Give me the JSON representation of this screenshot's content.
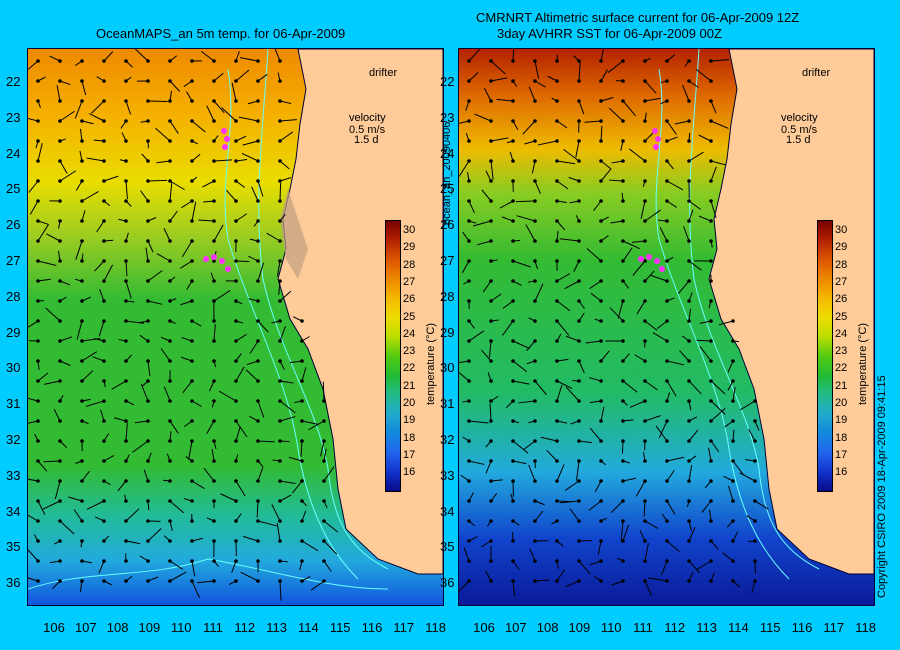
{
  "left_panel": {
    "title": "OceanMAPS_an 5m temp. for 06-Apr-2009"
  },
  "right_panel": {
    "title_line1": "CMRNRT Altimetric surface current for 06-Apr-2009 12Z",
    "title_line2": "3day AVHRR SST for 06-Apr-2009 00Z"
  },
  "latitude_labels": [
    "22",
    "23",
    "24",
    "25",
    "26",
    "27",
    "28",
    "29",
    "30",
    "31",
    "32",
    "33",
    "34",
    "35",
    "36"
  ],
  "longitude_labels": [
    "106",
    "107",
    "108",
    "109",
    "110",
    "111",
    "112",
    "113",
    "114",
    "115",
    "116",
    "117",
    "118"
  ],
  "legend": {
    "drifter_label": "drifter",
    "velocity_label": "velocity",
    "velocity_scale": "0.5 m/s",
    "velocity_scale_alt": "1.5 d"
  },
  "colorbar": {
    "ticks": [
      "30",
      "29",
      "28",
      "27",
      "26",
      "25",
      "24",
      "23",
      "22",
      "21",
      "20",
      "19",
      "18",
      "17",
      "16"
    ],
    "label": "temperature (°C)",
    "colors": [
      "#7a0000",
      "#b32200",
      "#dd5500",
      "#ee8800",
      "#f5b800",
      "#eedd00",
      "#bbdd00",
      "#55cc11",
      "#22bb33",
      "#22bb88",
      "#22aacc",
      "#1188dd",
      "#2266ee",
      "#1133cc",
      "#0a0a88"
    ]
  },
  "side_labels": {
    "file_id": "ocean_an_20090406",
    "copyright": "Copyright CSIRO 2009  18-Apr-2009 09:41:15"
  },
  "colors": {
    "background": "#00ccff",
    "land": "#ffcc99",
    "drifter": "#ff33ff",
    "coastline_contour": "#66ffff"
  }
}
